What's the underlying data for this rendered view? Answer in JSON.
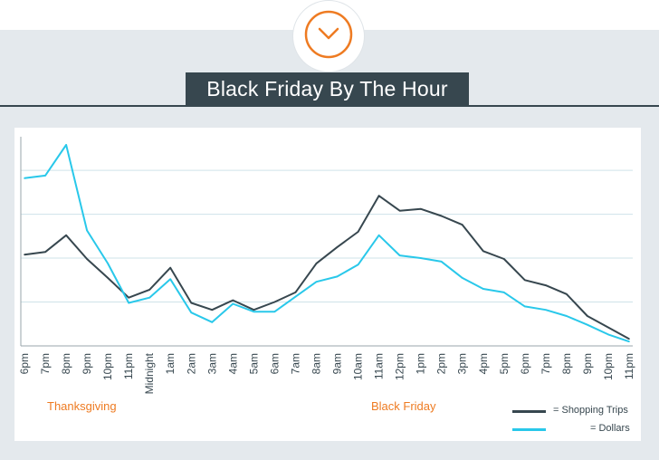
{
  "header": {
    "title": "Black Friday By The Hour",
    "icon": "chevron-down-circle-icon",
    "accent_color": "#ee7b22",
    "title_bg_color": "#37474f"
  },
  "chart_data": {
    "type": "line",
    "title": "Black Friday By The Hour",
    "categories": [
      "6pm",
      "7pm",
      "8pm",
      "9pm",
      "10pm",
      "11pm",
      "Midnight",
      "1am",
      "2am",
      "3am",
      "4am",
      "5am",
      "6am",
      "7am",
      "8am",
      "9am",
      "10am",
      "11am",
      "12pm",
      "1pm",
      "2pm",
      "3pm",
      "4pm",
      "5pm",
      "6pm",
      "7pm",
      "8pm",
      "9pm",
      "10pm",
      "11pm"
    ],
    "ylim": [
      0,
      4.6
    ],
    "grid": "horizontal",
    "y_ticks_labeled": false,
    "series": [
      {
        "name": "= Shopping Trips",
        "color": "#37474f",
        "values": [
          2.08,
          2.14,
          2.52,
          1.98,
          1.55,
          1.1,
          1.28,
          1.78,
          0.98,
          0.82,
          1.04,
          0.82,
          1.0,
          1.22,
          1.88,
          2.25,
          2.6,
          3.42,
          3.08,
          3.12,
          2.96,
          2.76,
          2.16,
          1.98,
          1.5,
          1.38,
          1.18,
          0.68,
          0.42,
          0.16
        ]
      },
      {
        "name": "= Dollars",
        "color": "#29c8ea",
        "values": [
          3.82,
          3.88,
          4.58,
          2.63,
          1.88,
          0.98,
          1.1,
          1.52,
          0.76,
          0.54,
          0.96,
          0.78,
          0.78,
          1.12,
          1.46,
          1.58,
          1.85,
          2.52,
          2.06,
          2.0,
          1.92,
          1.55,
          1.3,
          1.22,
          0.9,
          0.82,
          0.68,
          0.48,
          0.26,
          0.1
        ]
      }
    ],
    "groups": [
      {
        "label": "Thanksgiving",
        "color": "#ee7b22"
      },
      {
        "label": "Black Friday",
        "color": "#ee7b22"
      }
    ],
    "legend": {
      "position": "bottom-right"
    }
  }
}
